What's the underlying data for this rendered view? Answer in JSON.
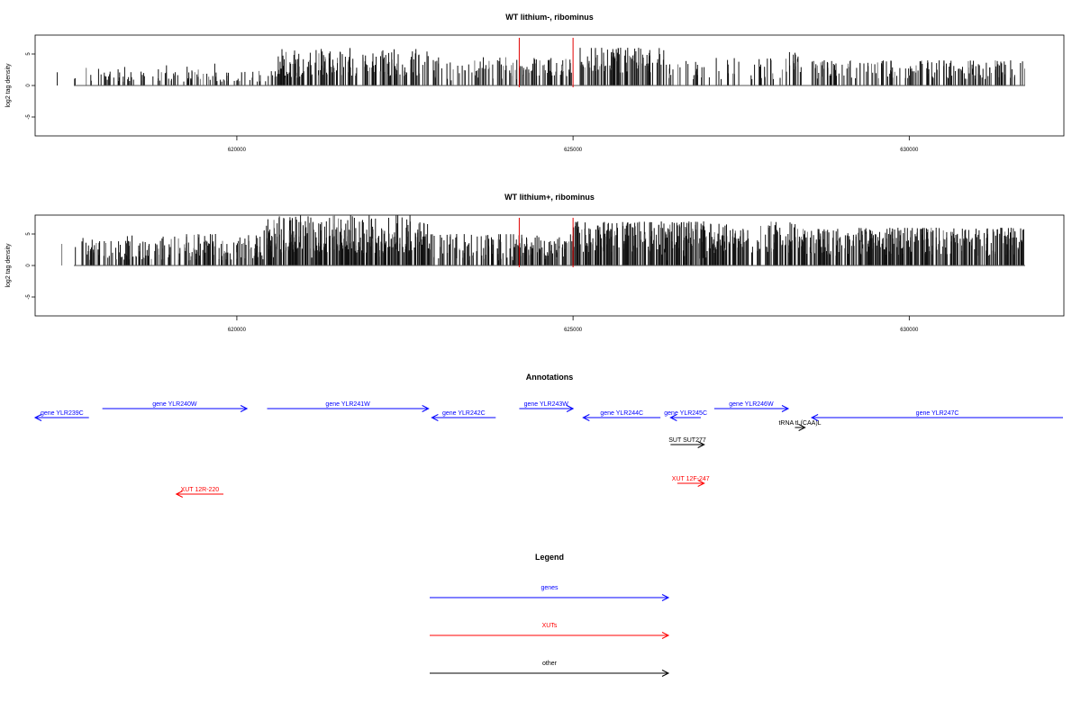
{
  "chart_data": [
    {
      "type": "bar",
      "title": "WT lithium-, ribominus",
      "ylabel": "log2 tag density",
      "xlabel": "",
      "xlim": [
        617000,
        632300
      ],
      "ylim": [
        -8,
        8
      ],
      "xticks": [
        620000,
        625000,
        630000
      ],
      "xtick_labels": [
        "620000",
        "625000",
        "630000"
      ],
      "yticks": [
        -5,
        0,
        5
      ],
      "ytick_labels": [
        "-5",
        "0",
        "5"
      ],
      "markers": [
        624200,
        625000
      ],
      "marker_color": "#e00000",
      "segments": [
        {
          "from": 617000,
          "to": 617200,
          "min": -2.5,
          "max": -0.6,
          "sign": -1,
          "density": 0.3
        },
        {
          "from": 617400,
          "to": 619700,
          "min": 0.6,
          "max": 3.0,
          "sign": 1,
          "density": 0.45
        },
        {
          "from": 618500,
          "to": 619700,
          "min": -3.5,
          "max": -0.6,
          "sign": -1,
          "density": 0.05
        },
        {
          "from": 619700,
          "to": 621000,
          "min": 0.6,
          "max": 2.5,
          "sign": 1,
          "density": 0.5
        },
        {
          "from": 620600,
          "to": 622850,
          "min": 1.5,
          "max": 6.0,
          "sign": 1,
          "density": 1.0
        },
        {
          "from": 622850,
          "to": 624200,
          "min": -4.5,
          "max": -0.8,
          "sign": -1,
          "density": 0.55
        },
        {
          "from": 624200,
          "to": 625000,
          "min": 1.5,
          "max": 4.5,
          "sign": 1,
          "density": 0.9
        },
        {
          "from": 625100,
          "to": 626350,
          "min": -6.0,
          "max": -2.0,
          "sign": -1,
          "density": 1.1
        },
        {
          "from": 626350,
          "to": 627000,
          "min": -3.5,
          "max": -0.8,
          "sign": -1,
          "density": 0.25
        },
        {
          "from": 626600,
          "to": 628400,
          "min": 1.0,
          "max": 4.5,
          "sign": 1,
          "density": 0.35
        },
        {
          "from": 628200,
          "to": 628350,
          "min": 3.0,
          "max": 6.0,
          "sign": 1,
          "density": 1.0
        },
        {
          "from": 628550,
          "to": 632100,
          "min": -4.0,
          "max": -1.0,
          "sign": -1,
          "density": 0.75
        }
      ]
    },
    {
      "type": "bar",
      "title": "WT lithium+, ribominus",
      "ylabel": "log2 tag density",
      "xlabel": "",
      "xlim": [
        617000,
        632300
      ],
      "ylim": [
        -8,
        8
      ],
      "xticks": [
        620000,
        625000,
        630000
      ],
      "xtick_labels": [
        "620000",
        "625000",
        "630000"
      ],
      "yticks": [
        -5,
        0,
        5
      ],
      "ytick_labels": [
        "-5",
        "0",
        "5"
      ],
      "markers": [
        624200,
        625000
      ],
      "marker_color": "#e00000",
      "segments": [
        {
          "from": 617000,
          "to": 617350,
          "min": -3.5,
          "max": -0.8,
          "sign": -1,
          "density": 0.6
        },
        {
          "from": 617350,
          "to": 620400,
          "min": 0.8,
          "max": 4.0,
          "sign": 1,
          "density": 0.55
        },
        {
          "from": 617700,
          "to": 620400,
          "min": -5.0,
          "max": -0.8,
          "sign": -1,
          "density": 0.4
        },
        {
          "from": 620400,
          "to": 622850,
          "min": 2.0,
          "max": 8.0,
          "sign": 1,
          "density": 1.6
        },
        {
          "from": 620400,
          "to": 622850,
          "min": -4.0,
          "max": -0.8,
          "sign": -1,
          "density": 0.2
        },
        {
          "from": 622850,
          "to": 624200,
          "min": -5.0,
          "max": -1.0,
          "sign": -1,
          "density": 0.8
        },
        {
          "from": 623200,
          "to": 624200,
          "min": 0.8,
          "max": 3.0,
          "sign": 1,
          "density": 0.15
        },
        {
          "from": 624200,
          "to": 625000,
          "min": 1.5,
          "max": 5.0,
          "sign": 1,
          "density": 0.9
        },
        {
          "from": 624300,
          "to": 625000,
          "min": -4.0,
          "max": -0.8,
          "sign": -1,
          "density": 0.3
        },
        {
          "from": 625000,
          "to": 627050,
          "min": -7.0,
          "max": -2.0,
          "sign": -1,
          "density": 1.5
        },
        {
          "from": 626300,
          "to": 627050,
          "min": 0.8,
          "max": 3.0,
          "sign": 1,
          "density": 0.2
        },
        {
          "from": 627050,
          "to": 628450,
          "min": 2.0,
          "max": 7.0,
          "sign": 1,
          "density": 1.3
        },
        {
          "from": 628450,
          "to": 632100,
          "min": -6.0,
          "max": -1.5,
          "sign": -1,
          "density": 1.4
        }
      ]
    }
  ],
  "annotations": {
    "title": "Annotations",
    "xlim": [
      617000,
      632300
    ],
    "features": [
      {
        "label": "gene YLR239C",
        "start": 617000,
        "end": 617800,
        "dir": "-",
        "row": 1,
        "color": "#0000ff"
      },
      {
        "label": "gene YLR240W",
        "start": 618000,
        "end": 620150,
        "dir": "+",
        "row": 0,
        "color": "#0000ff"
      },
      {
        "label": "gene YLR241W",
        "start": 620450,
        "end": 622850,
        "dir": "+",
        "row": 0,
        "color": "#0000ff"
      },
      {
        "label": "gene YLR242C",
        "start": 622900,
        "end": 623850,
        "dir": "-",
        "row": 1,
        "color": "#0000ff"
      },
      {
        "label": "gene YLR243W",
        "start": 624200,
        "end": 625000,
        "dir": "+",
        "row": 0,
        "color": "#0000ff"
      },
      {
        "label": "gene YLR244C",
        "start": 625150,
        "end": 626300,
        "dir": "-",
        "row": 1,
        "color": "#0000ff"
      },
      {
        "label": "gene YLR245C",
        "start": 626450,
        "end": 626900,
        "dir": "-",
        "row": 1,
        "color": "#0000ff"
      },
      {
        "label": "gene YLR246W",
        "start": 627100,
        "end": 628200,
        "dir": "+",
        "row": 0,
        "color": "#0000ff"
      },
      {
        "label": "tRNA tL(CAA)L",
        "start": 628300,
        "end": 628450,
        "dir": "+",
        "row": 2,
        "color": "#000000"
      },
      {
        "label": "gene YLR247C",
        "start": 628550,
        "end": 632300,
        "dir": "-",
        "row": 1,
        "color": "#0000ff"
      },
      {
        "label": "SUT SUT277",
        "start": 626450,
        "end": 626950,
        "dir": "+",
        "row": 3,
        "color": "#000000"
      },
      {
        "label": "XUT 12F-247",
        "start": 626550,
        "end": 626950,
        "dir": "+",
        "row": 4,
        "color": "#ff0000"
      },
      {
        "label": "XUT 12R-220",
        "start": 619100,
        "end": 619800,
        "dir": "-",
        "row": 5,
        "color": "#ff0000"
      }
    ]
  },
  "legend": {
    "title": "Legend",
    "items": [
      {
        "label": "genes",
        "color": "#0000ff"
      },
      {
        "label": "XUTs",
        "color": "#ff0000"
      },
      {
        "label": "other",
        "color": "#000000"
      }
    ]
  }
}
